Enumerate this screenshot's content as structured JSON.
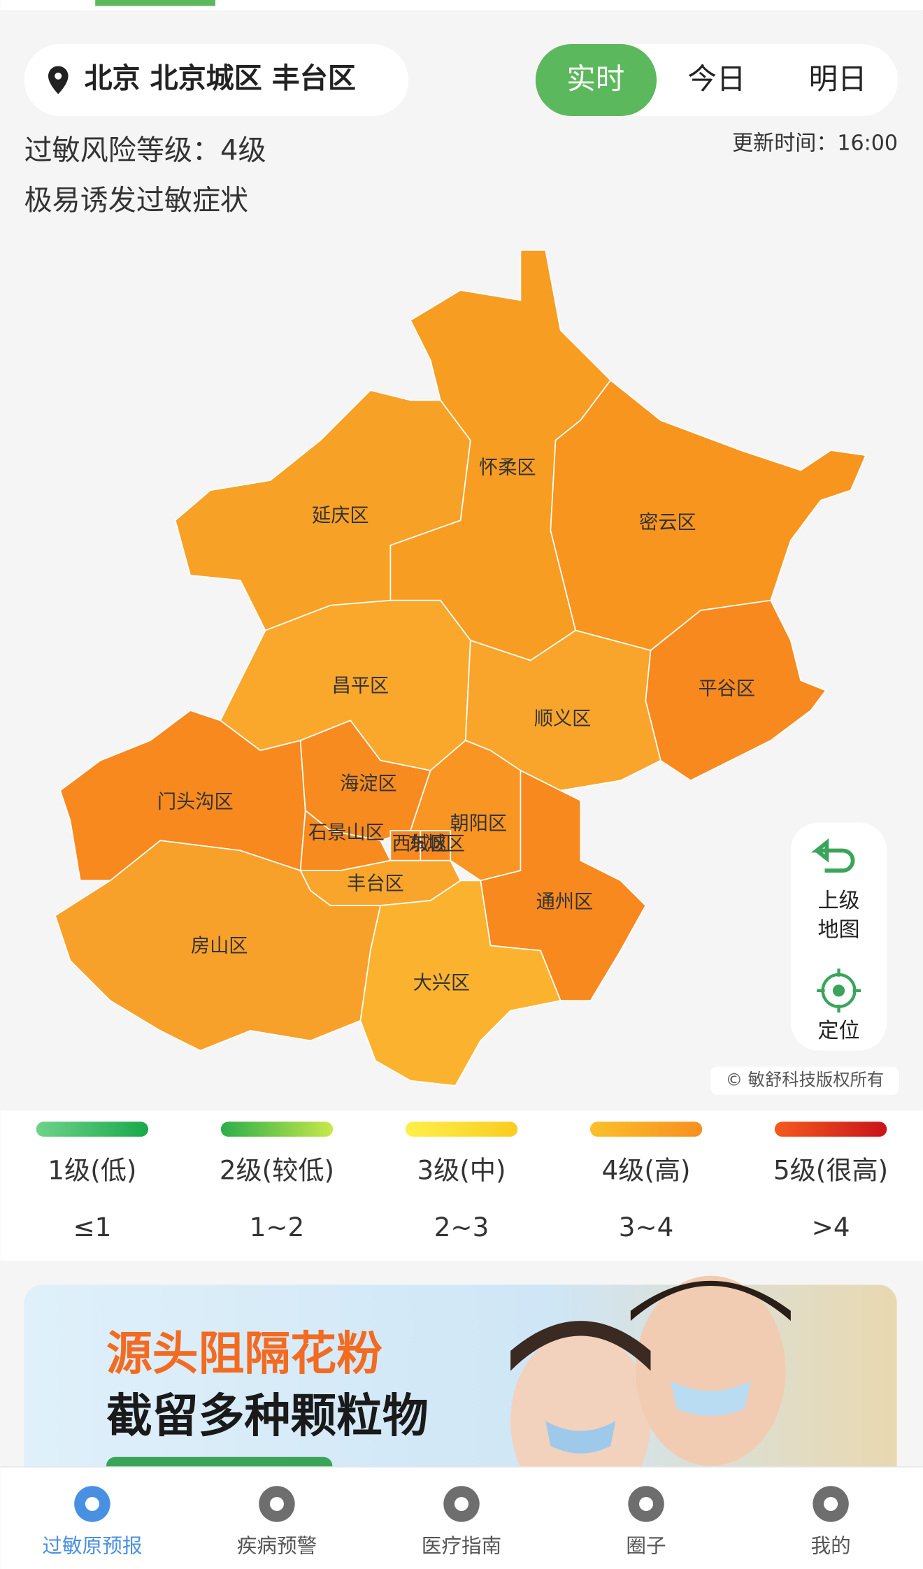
{
  "location": "北京 北京城区 丰台区",
  "tabs": [
    "实时",
    "今日",
    "明日"
  ],
  "risk_level": "过敏风险等级：4级",
  "risk_desc": "极易诱发过敏症状",
  "update_time": "更新时间：16:00",
  "districts": [
    {
      "name": "延庆区",
      "color": "#f7a126"
    },
    {
      "name": "怀柔区",
      "color": "#f79d22"
    },
    {
      "name": "密云区",
      "color": "#f7951f"
    },
    {
      "name": "平谷区",
      "color": "#f7891f"
    },
    {
      "name": "昌平区",
      "color": "#f9a82c"
    },
    {
      "name": "顺义区",
      "color": "#f9a52b"
    },
    {
      "name": "门头沟区",
      "color": "#f7891f"
    },
    {
      "name": "海淀区",
      "color": "#f78b20"
    },
    {
      "name": "石景山区",
      "color": "#f78b20"
    },
    {
      "name": "西城区",
      "color": "#f7891f"
    },
    {
      "name": "东城区",
      "color": "#f7891f"
    },
    {
      "name": "朝阳区",
      "color": "#f89523"
    },
    {
      "name": "丰台区",
      "color": "#f9a52b"
    },
    {
      "name": "通州区",
      "color": "#f7891f"
    },
    {
      "name": "房山区",
      "color": "#f8a12a"
    },
    {
      "name": "大兴区",
      "color": "#fbb32f"
    }
  ],
  "map_buttons": [
    [
      "上级",
      "地图"
    ],
    [
      "定位"
    ]
  ],
  "copyright": "© 敏舒科技版权所有",
  "legend": [
    {
      "level": "1级(低)",
      "range": "≤1"
    },
    {
      "level": "2级(较低)",
      "range": "1~2"
    },
    {
      "level": "3级(中)",
      "range": "2~3"
    },
    {
      "level": "4级(高)",
      "range": "3~4"
    },
    {
      "level": "5级(很高)",
      "range": ">4"
    }
  ],
  "banner": {
    "headline": "源头阻隔花粉",
    "subline": "截留多种颗粒物"
  },
  "nav": [
    "过敏原预报",
    "疾病预警",
    "医疗指南",
    "圈子",
    "我的"
  ]
}
